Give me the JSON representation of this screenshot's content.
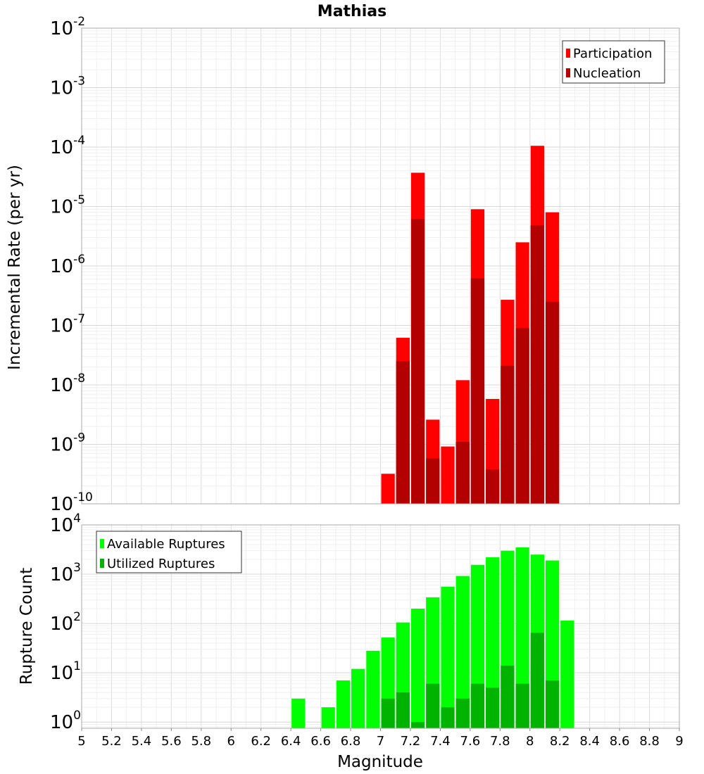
{
  "chart_data": [
    {
      "type": "bar",
      "title": "Mathias",
      "ylabel": "Incremental Rate (per yr)",
      "xlabel": "",
      "y_scale": "log",
      "ylim": [
        1e-10,
        0.01
      ],
      "xlim": [
        5,
        9
      ],
      "bin_width": 0.1,
      "grid": true,
      "legend_position": "top-right",
      "series": [
        {
          "name": "Participation",
          "color": "#ff0000",
          "x": [
            7.05,
            7.15,
            7.25,
            7.35,
            7.45,
            7.55,
            7.65,
            7.75,
            7.85,
            7.95,
            8.05,
            8.15
          ],
          "values": [
            3.2e-10,
            6.2e-08,
            3.7e-05,
            2.6e-09,
            9.2e-10,
            1.2e-08,
            9e-06,
            5.8e-09,
            2.7e-07,
            2.5e-06,
            0.000105,
            8e-06
          ]
        },
        {
          "name": "Nucleation",
          "color": "#b30000",
          "x": [
            7.15,
            7.25,
            7.35,
            7.55,
            7.65,
            7.75,
            7.85,
            7.95,
            8.05,
            8.15
          ],
          "values": [
            2.5e-08,
            6.2e-06,
            5.8e-10,
            1.1e-09,
            6.2e-07,
            3.8e-10,
            2.1e-08,
            9e-08,
            4.8e-06,
            2.5e-07
          ]
        }
      ]
    },
    {
      "type": "bar",
      "title": "",
      "ylabel": "Rupture Count",
      "xlabel": "Magnitude",
      "y_scale": "log",
      "ylim": [
        0.75,
        10000
      ],
      "xlim": [
        5,
        9
      ],
      "bin_width": 0.1,
      "grid": true,
      "legend_position": "top-left",
      "x_ticks": [
        "5",
        "5.2",
        "5.4",
        "5.6",
        "5.8",
        "6",
        "6.2",
        "6.4",
        "6.6",
        "6.8",
        "7",
        "7.2",
        "7.4",
        "7.6",
        "7.8",
        "8",
        "8.2",
        "8.4",
        "8.6",
        "8.8",
        "9"
      ],
      "series": [
        {
          "name": "Available Ruptures",
          "color": "#00ff00",
          "x": [
            6.45,
            6.65,
            6.75,
            6.85,
            6.95,
            7.05,
            7.15,
            7.25,
            7.35,
            7.45,
            7.55,
            7.65,
            7.75,
            7.85,
            7.95,
            8.05,
            8.15,
            8.25
          ],
          "values": [
            3,
            2,
            7,
            12,
            28,
            52,
            105,
            200,
            340,
            560,
            920,
            1550,
            2200,
            3000,
            3500,
            2500,
            1900,
            115
          ]
        },
        {
          "name": "Utilized Ruptures",
          "color": "#00b300",
          "x": [
            7.05,
            7.15,
            7.25,
            7.35,
            7.45,
            7.55,
            7.65,
            7.75,
            7.85,
            7.95,
            8.05,
            8.15
          ],
          "values": [
            3,
            4,
            1,
            6,
            2,
            3,
            6,
            5,
            14,
            6,
            65,
            7
          ]
        }
      ]
    }
  ]
}
